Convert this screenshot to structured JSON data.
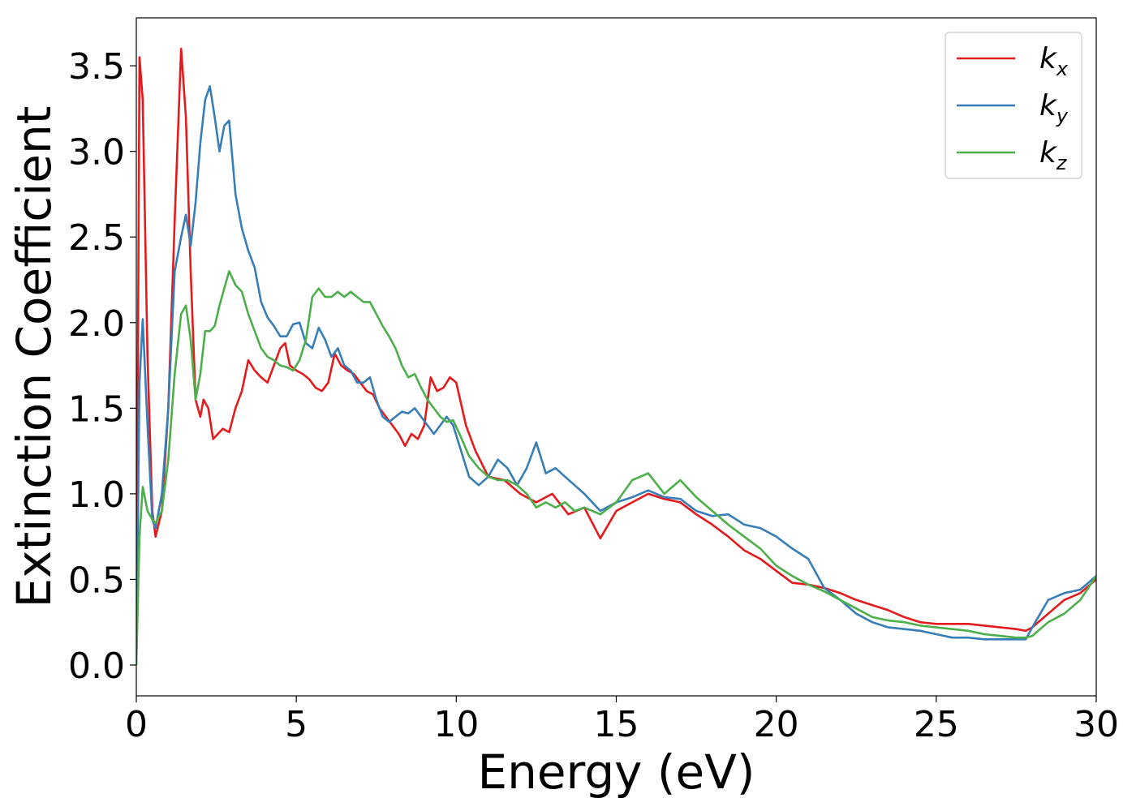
{
  "chart_data": {
    "type": "line",
    "xlabel": "Energy (eV)",
    "ylabel": "Extinction Coefficient",
    "xlim": [
      0,
      30
    ],
    "ylim": [
      -0.18,
      3.78
    ],
    "xticks": [
      0,
      5,
      10,
      15,
      20,
      25,
      30
    ],
    "xtick_labels": [
      "0",
      "5",
      "10",
      "15",
      "20",
      "25",
      "30"
    ],
    "yticks": [
      0.0,
      0.5,
      1.0,
      1.5,
      2.0,
      2.5,
      3.0,
      3.5
    ],
    "ytick_labels": [
      "0.0",
      "0.5",
      "1.0",
      "1.5",
      "2.0",
      "2.5",
      "3.0",
      "3.5"
    ],
    "grid": false,
    "legend_position": "top-right",
    "series": [
      {
        "name": "k",
        "subscript": "x",
        "color": "#e41a1c",
        "x": [
          0,
          0.1,
          0.2,
          0.35,
          0.5,
          0.6,
          0.8,
          1.0,
          1.2,
          1.4,
          1.55,
          1.7,
          1.85,
          2.0,
          2.1,
          2.25,
          2.4,
          2.55,
          2.7,
          2.9,
          3.1,
          3.3,
          3.5,
          3.7,
          3.9,
          4.1,
          4.3,
          4.5,
          4.65,
          4.8,
          5.0,
          5.2,
          5.4,
          5.6,
          5.8,
          6.0,
          6.2,
          6.4,
          6.6,
          6.8,
          7.0,
          7.2,
          7.4,
          7.6,
          7.8,
          8.0,
          8.2,
          8.4,
          8.6,
          8.8,
          9.0,
          9.2,
          9.4,
          9.6,
          9.8,
          10.0,
          10.3,
          10.6,
          11.0,
          11.5,
          12.0,
          12.5,
          13.0,
          13.5,
          14.0,
          14.5,
          15.0,
          15.5,
          16.0,
          16.5,
          17.0,
          17.5,
          18.0,
          18.5,
          19.0,
          19.5,
          20.0,
          20.5,
          21.0,
          21.5,
          22.0,
          22.5,
          23.0,
          23.5,
          24.0,
          24.5,
          25.0,
          25.5,
          26.0,
          26.5,
          27.0,
          27.5,
          27.8,
          28.0,
          28.5,
          29.0,
          29.5,
          30.0
        ],
        "y": [
          0.0,
          3.55,
          3.3,
          1.8,
          0.9,
          0.75,
          0.9,
          1.5,
          2.6,
          3.6,
          3.2,
          2.3,
          1.55,
          1.45,
          1.55,
          1.5,
          1.32,
          1.35,
          1.38,
          1.36,
          1.5,
          1.6,
          1.78,
          1.72,
          1.68,
          1.65,
          1.75,
          1.85,
          1.88,
          1.75,
          1.72,
          1.7,
          1.67,
          1.62,
          1.6,
          1.65,
          1.82,
          1.75,
          1.72,
          1.7,
          1.65,
          1.6,
          1.58,
          1.5,
          1.45,
          1.4,
          1.35,
          1.28,
          1.35,
          1.32,
          1.4,
          1.68,
          1.6,
          1.62,
          1.68,
          1.65,
          1.4,
          1.25,
          1.1,
          1.08,
          1.0,
          0.95,
          1.0,
          0.88,
          0.92,
          0.74,
          0.9,
          0.95,
          1.0,
          0.97,
          0.95,
          0.88,
          0.82,
          0.75,
          0.67,
          0.62,
          0.55,
          0.48,
          0.47,
          0.45,
          0.42,
          0.38,
          0.35,
          0.32,
          0.28,
          0.25,
          0.24,
          0.24,
          0.24,
          0.23,
          0.22,
          0.21,
          0.2,
          0.22,
          0.3,
          0.38,
          0.42,
          0.5
        ]
      },
      {
        "name": "k",
        "subscript": "y",
        "color": "#377eb8",
        "x": [
          0,
          0.1,
          0.2,
          0.35,
          0.5,
          0.6,
          0.8,
          1.0,
          1.2,
          1.4,
          1.55,
          1.7,
          1.85,
          2.0,
          2.15,
          2.3,
          2.45,
          2.6,
          2.75,
          2.9,
          3.1,
          3.3,
          3.5,
          3.7,
          3.9,
          4.1,
          4.3,
          4.5,
          4.7,
          4.9,
          5.1,
          5.3,
          5.5,
          5.7,
          5.9,
          6.1,
          6.3,
          6.5,
          6.7,
          6.9,
          7.1,
          7.3,
          7.5,
          7.7,
          7.9,
          8.1,
          8.3,
          8.5,
          8.7,
          8.9,
          9.1,
          9.3,
          9.5,
          9.7,
          9.9,
          10.1,
          10.4,
          10.7,
          11.0,
          11.3,
          11.6,
          11.9,
          12.2,
          12.5,
          12.8,
          13.1,
          13.4,
          13.7,
          14.0,
          14.5,
          15.0,
          15.5,
          16.0,
          16.5,
          17.0,
          17.5,
          18.0,
          18.5,
          19.0,
          19.5,
          20.0,
          20.5,
          21.0,
          21.5,
          22.0,
          22.5,
          23.0,
          23.5,
          24.0,
          24.5,
          25.0,
          25.5,
          26.0,
          26.5,
          27.0,
          27.5,
          27.8,
          28.0,
          28.5,
          29.0,
          29.5,
          30.0
        ],
        "y": [
          0.0,
          1.65,
          2.02,
          1.4,
          0.85,
          0.8,
          1.0,
          1.5,
          2.3,
          2.5,
          2.63,
          2.45,
          2.7,
          3.05,
          3.3,
          3.38,
          3.2,
          3.0,
          3.15,
          3.18,
          2.75,
          2.55,
          2.42,
          2.32,
          2.12,
          2.03,
          1.98,
          1.92,
          1.92,
          1.99,
          2.0,
          1.88,
          1.85,
          1.97,
          1.9,
          1.8,
          1.85,
          1.75,
          1.72,
          1.65,
          1.65,
          1.68,
          1.55,
          1.45,
          1.42,
          1.45,
          1.48,
          1.47,
          1.5,
          1.45,
          1.4,
          1.35,
          1.4,
          1.45,
          1.4,
          1.28,
          1.1,
          1.05,
          1.1,
          1.2,
          1.15,
          1.05,
          1.15,
          1.3,
          1.12,
          1.15,
          1.1,
          1.05,
          1.0,
          0.9,
          0.95,
          0.98,
          1.02,
          0.98,
          0.97,
          0.9,
          0.87,
          0.88,
          0.82,
          0.8,
          0.75,
          0.68,
          0.62,
          0.45,
          0.38,
          0.3,
          0.25,
          0.22,
          0.21,
          0.2,
          0.18,
          0.16,
          0.16,
          0.15,
          0.15,
          0.15,
          0.15,
          0.22,
          0.38,
          0.42,
          0.44,
          0.52
        ]
      },
      {
        "name": "k",
        "subscript": "z",
        "color": "#4daf4a",
        "x": [
          0,
          0.1,
          0.2,
          0.35,
          0.5,
          0.6,
          0.8,
          1.0,
          1.2,
          1.4,
          1.55,
          1.7,
          1.85,
          2.0,
          2.15,
          2.3,
          2.45,
          2.6,
          2.75,
          2.9,
          3.1,
          3.3,
          3.5,
          3.7,
          3.9,
          4.1,
          4.3,
          4.5,
          4.7,
          4.9,
          5.1,
          5.3,
          5.5,
          5.7,
          5.9,
          6.1,
          6.3,
          6.5,
          6.7,
          6.9,
          7.1,
          7.3,
          7.5,
          7.7,
          7.9,
          8.1,
          8.3,
          8.5,
          8.7,
          8.9,
          9.1,
          9.3,
          9.5,
          9.7,
          9.9,
          10.1,
          10.4,
          10.7,
          11.0,
          11.3,
          11.6,
          11.9,
          12.2,
          12.5,
          12.8,
          13.1,
          13.4,
          13.7,
          14.0,
          14.5,
          15.0,
          15.5,
          16.0,
          16.5,
          17.0,
          17.5,
          18.0,
          18.5,
          19.0,
          19.5,
          20.0,
          20.5,
          21.0,
          21.5,
          22.0,
          22.5,
          23.0,
          23.5,
          24.0,
          24.5,
          25.0,
          25.5,
          26.0,
          26.5,
          27.0,
          27.5,
          27.8,
          28.0,
          28.5,
          29.0,
          29.5,
          30.0
        ],
        "y": [
          0.0,
          0.75,
          1.04,
          0.9,
          0.85,
          0.83,
          0.9,
          1.2,
          1.7,
          2.05,
          2.1,
          1.9,
          1.55,
          1.7,
          1.95,
          1.95,
          1.98,
          2.1,
          2.2,
          2.3,
          2.22,
          2.18,
          2.05,
          1.95,
          1.85,
          1.8,
          1.78,
          1.75,
          1.74,
          1.72,
          1.78,
          1.9,
          2.15,
          2.2,
          2.15,
          2.15,
          2.18,
          2.15,
          2.18,
          2.15,
          2.12,
          2.12,
          2.05,
          1.98,
          1.92,
          1.85,
          1.75,
          1.68,
          1.7,
          1.62,
          1.55,
          1.5,
          1.45,
          1.42,
          1.43,
          1.35,
          1.22,
          1.15,
          1.1,
          1.08,
          1.08,
          1.05,
          1.0,
          0.92,
          0.95,
          0.92,
          0.95,
          0.9,
          0.92,
          0.88,
          0.95,
          1.08,
          1.12,
          1.0,
          1.08,
          0.98,
          0.9,
          0.82,
          0.75,
          0.68,
          0.58,
          0.52,
          0.47,
          0.43,
          0.38,
          0.33,
          0.28,
          0.26,
          0.25,
          0.23,
          0.22,
          0.21,
          0.2,
          0.18,
          0.17,
          0.16,
          0.16,
          0.17,
          0.25,
          0.3,
          0.38,
          0.52
        ]
      }
    ]
  }
}
